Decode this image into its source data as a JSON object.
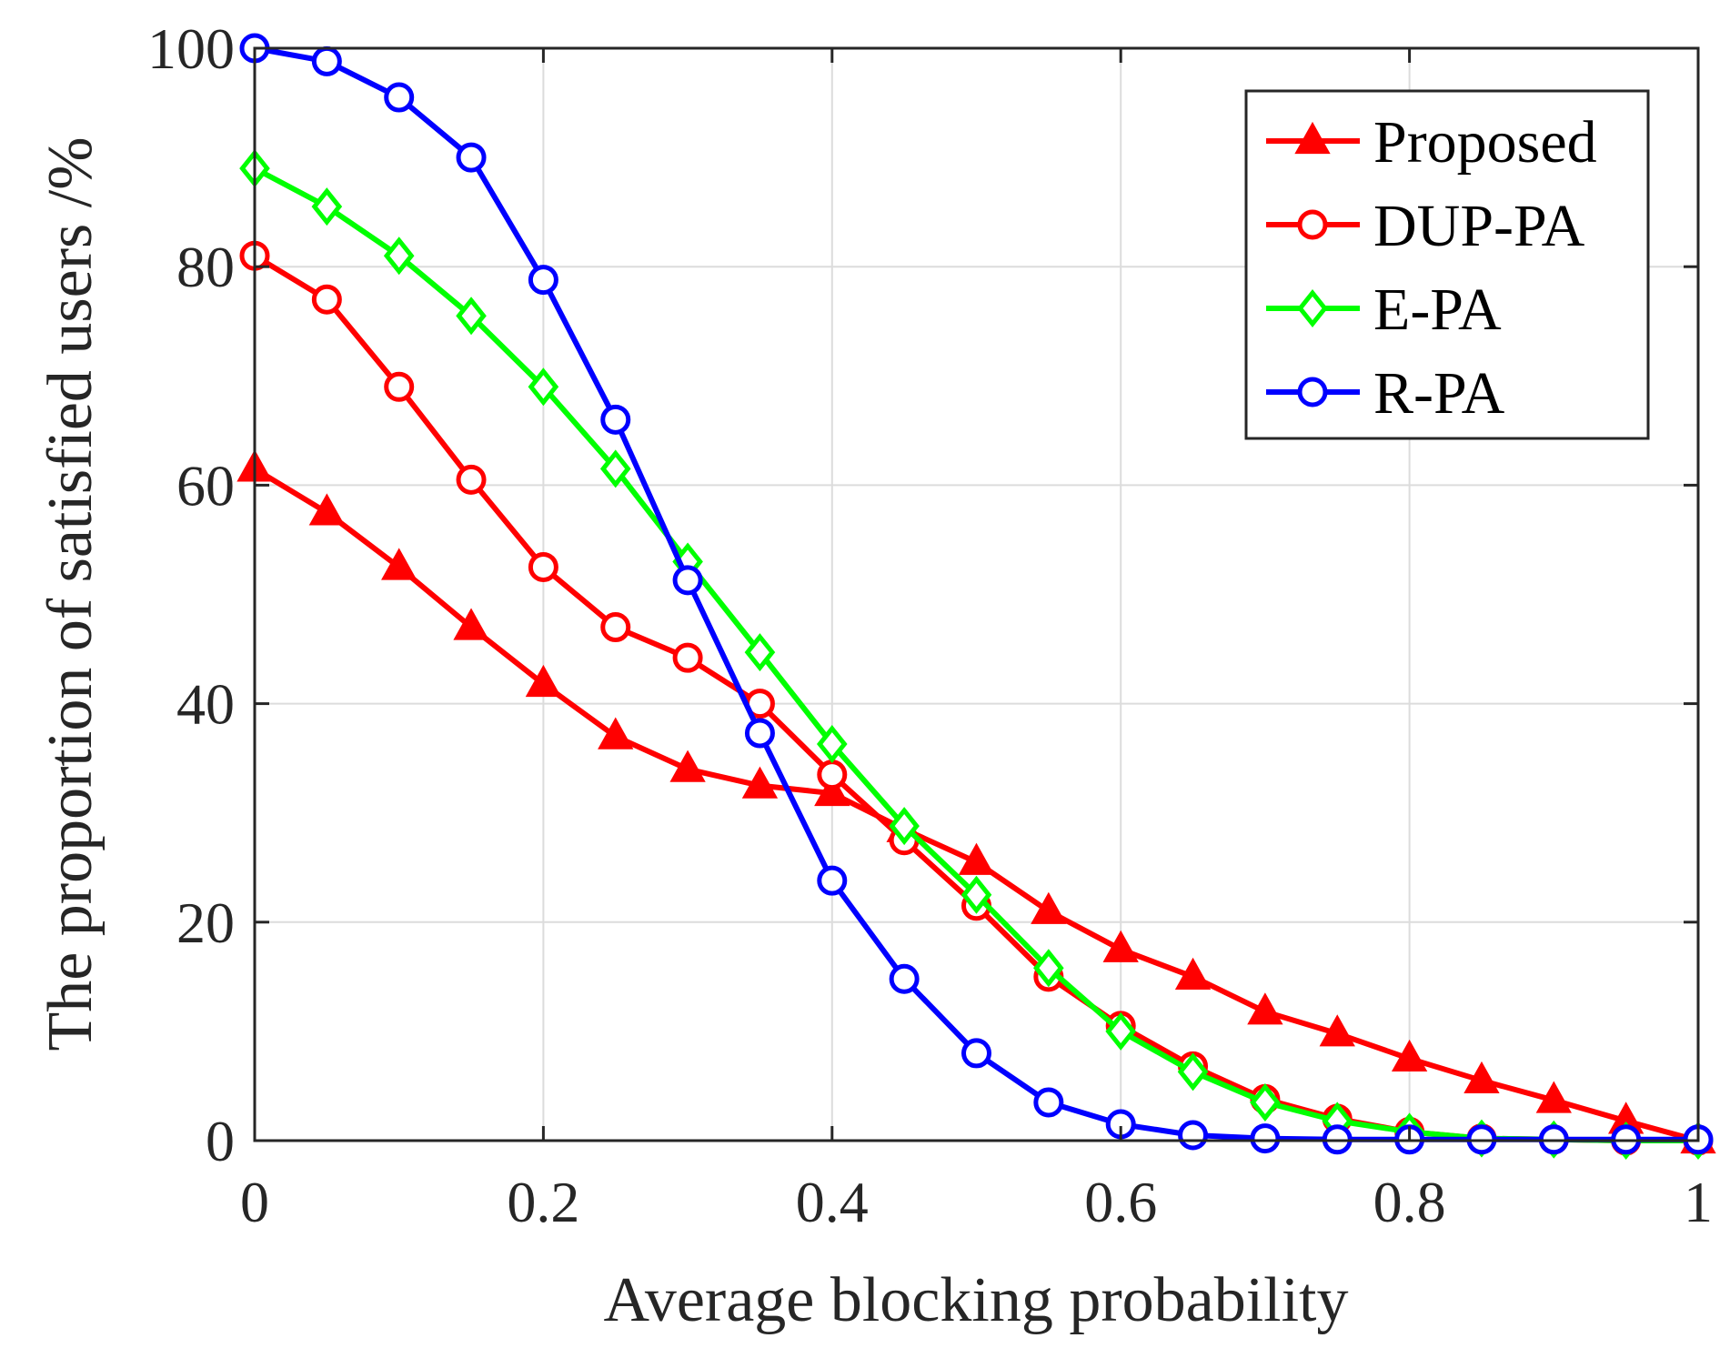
{
  "chart_data": {
    "type": "line",
    "title": "",
    "xlabel": "Average blocking probability",
    "ylabel": "The proportion of satisfied users /%",
    "xlim": [
      0,
      1
    ],
    "ylim": [
      0,
      100
    ],
    "grid": true,
    "legend_position": "top-right",
    "x_ticks": [
      0,
      0.2,
      0.4,
      0.6,
      0.8,
      1
    ],
    "x_tick_labels": [
      "0",
      "0.2",
      "0.4",
      "0.6",
      "0.8",
      "1"
    ],
    "y_ticks": [
      0,
      20,
      40,
      60,
      80,
      100
    ],
    "y_tick_labels": [
      "0",
      "20",
      "40",
      "60",
      "80",
      "100"
    ],
    "x": [
      0,
      0.05,
      0.1,
      0.15,
      0.2,
      0.25,
      0.3,
      0.35,
      0.4,
      0.45,
      0.5,
      0.55,
      0.6,
      0.65,
      0.7,
      0.75,
      0.8,
      0.85,
      0.9,
      0.95,
      1
    ],
    "series": [
      {
        "name": "Proposed",
        "color": "#ff0000",
        "marker": "triangle",
        "values": [
          61.5,
          57.5,
          52.5,
          47,
          41.8,
          37,
          34,
          32.5,
          31.8,
          28.5,
          25.5,
          21,
          17.5,
          15,
          11.8,
          9.8,
          7.5,
          5.5,
          3.7,
          1.8,
          0
        ]
      },
      {
        "name": "DUP-PA",
        "color": "#ff0000",
        "marker": "circle",
        "values": [
          81,
          77,
          69,
          60.5,
          52.5,
          47,
          44.2,
          40,
          33.5,
          27.5,
          21.5,
          15,
          10.5,
          6.8,
          3.8,
          2,
          0.8,
          0.2,
          0.1,
          0,
          0
        ]
      },
      {
        "name": "E-PA",
        "color": "#00ff00",
        "marker": "diamond",
        "values": [
          89,
          85.5,
          81,
          75.5,
          69,
          61.5,
          53,
          44.7,
          36.3,
          28.8,
          22.5,
          15.8,
          10,
          6.3,
          3.5,
          1.8,
          0.8,
          0.2,
          0.1,
          0,
          0
        ]
      },
      {
        "name": "R-PA",
        "color": "#0000ff",
        "marker": "circle",
        "values": [
          100,
          98.8,
          95.5,
          90,
          78.8,
          66,
          51.3,
          37.3,
          23.8,
          14.8,
          8,
          3.5,
          1.5,
          0.5,
          0.2,
          0.1,
          0.1,
          0.1,
          0.1,
          0.1,
          0.1
        ]
      }
    ]
  }
}
